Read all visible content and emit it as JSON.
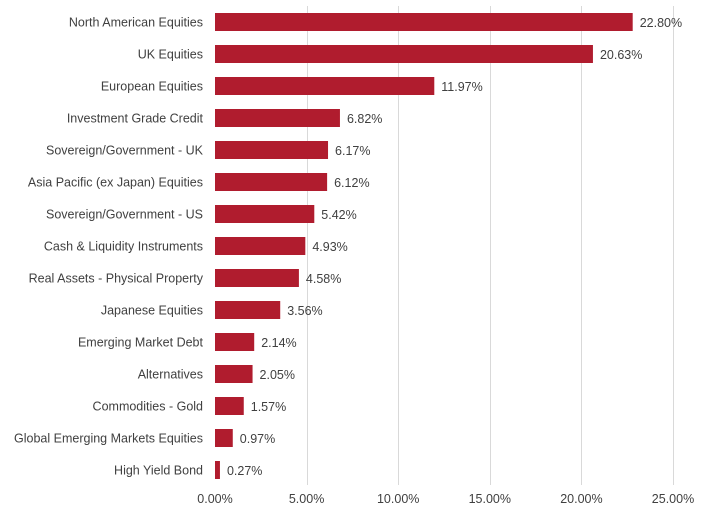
{
  "chart_data": {
    "type": "bar",
    "orientation": "horizontal",
    "title": "",
    "xlabel": "",
    "ylabel": "",
    "categories": [
      "North American Equities",
      "UK Equities",
      "European Equities",
      "Investment Grade Credit",
      "Sovereign/Government - UK",
      "Asia Pacific (ex Japan) Equities",
      "Sovereign/Government - US",
      "Cash & Liquidity Instruments",
      "Real Assets - Physical Property",
      "Japanese Equities",
      "Emerging Market Debt",
      "Alternatives",
      "Commodities - Gold",
      "Global Emerging Markets Equities",
      "High Yield Bond"
    ],
    "values": [
      22.8,
      20.63,
      11.97,
      6.82,
      6.17,
      6.12,
      5.42,
      4.93,
      4.58,
      3.56,
      2.14,
      2.05,
      1.57,
      0.97,
      0.27
    ],
    "value_labels": [
      "22.80%",
      "20.63%",
      "11.97%",
      "6.82%",
      "6.17%",
      "6.12%",
      "5.42%",
      "4.93%",
      "4.58%",
      "3.56%",
      "2.14%",
      "2.05%",
      "1.57%",
      "0.97%",
      "0.27%"
    ],
    "xlim": [
      0,
      25
    ],
    "x_ticks": [
      0,
      5,
      10,
      15,
      20,
      25
    ],
    "x_tick_labels": [
      "0.00%",
      "5.00%",
      "10.00%",
      "15.00%",
      "20.00%",
      "25.00%"
    ],
    "grid": "vertical",
    "legend": "none",
    "colors": {
      "bar": "#b01c2e",
      "grid": "#d9d9d9",
      "text": "#404040"
    }
  }
}
